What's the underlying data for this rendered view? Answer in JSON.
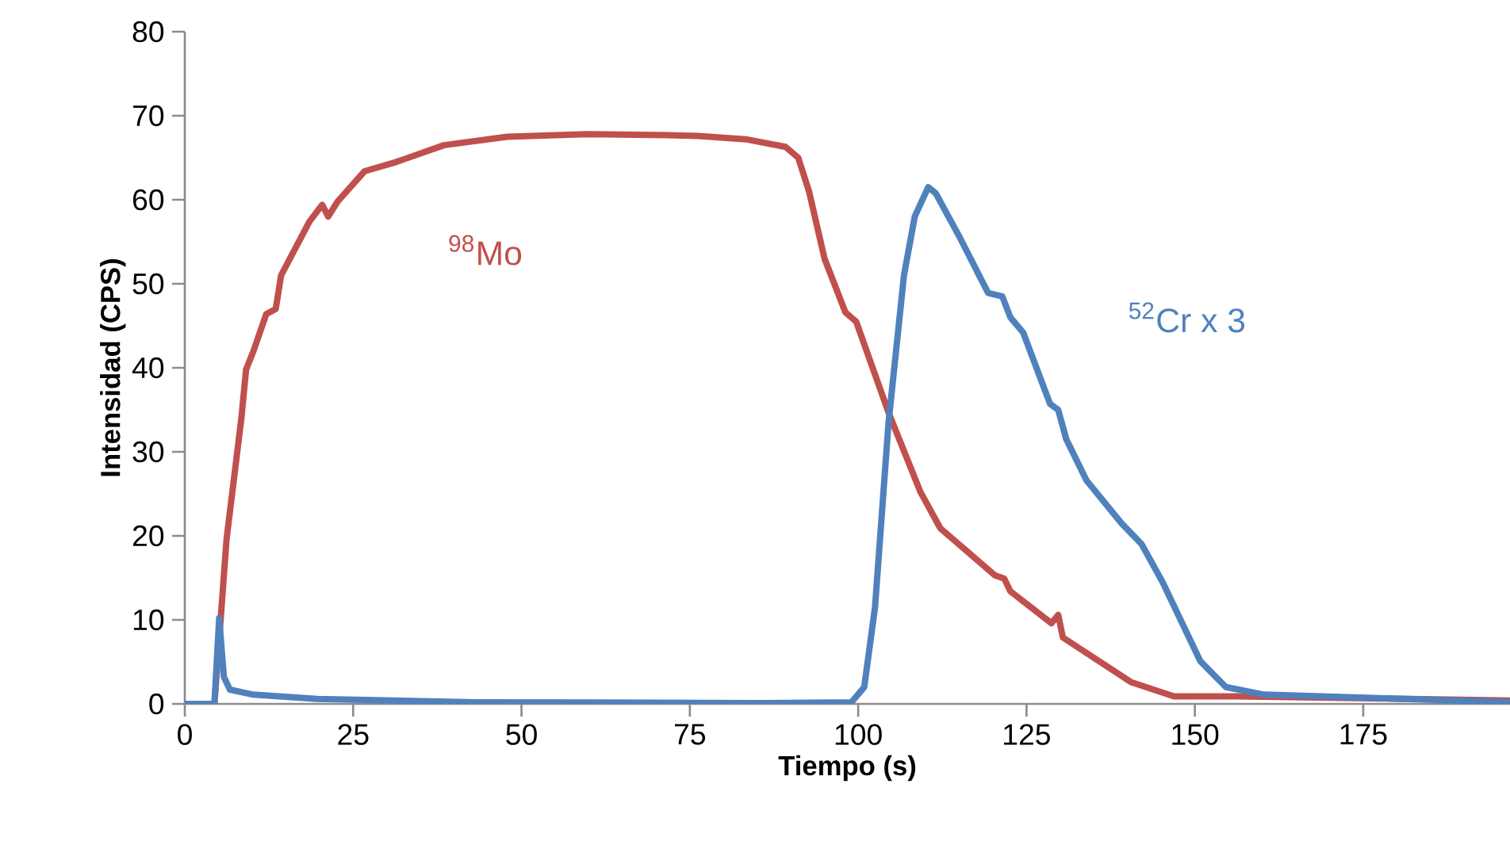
{
  "chart_data": {
    "type": "line",
    "xlabel": "Tiempo (s)",
    "ylabel": "Intensidad (CPS)",
    "xlim": [
      0,
      196.8
    ],
    "xticks": [
      0,
      25,
      50,
      75,
      100,
      125,
      150,
      175
    ],
    "ylim": [
      0,
      80
    ],
    "yticks": [
      0,
      10,
      20,
      30,
      40,
      50,
      60,
      70,
      80
    ],
    "grid": false,
    "legend": false,
    "marker": "none",
    "line_style": "solid",
    "series": [
      {
        "name": "$^{98}$Mo",
        "color": "#c0504d",
        "x": [
          0,
          4.4,
          6.2,
          8.4,
          9.1,
          10.2,
          12.1,
          13.5,
          14.3,
          18.5,
          20.4,
          21.3,
          22.7,
          26.7,
          31.4,
          38.5,
          47.9,
          59.7,
          71.5,
          76.2,
          83.3,
          89.2,
          91.1,
          92.7,
          95.0,
          98.1,
          99.7,
          104.5,
          109.2,
          112.2,
          120.3,
          121.7,
          122.6,
          128.7,
          129.7,
          130.4,
          140.5,
          146.9,
          156.3,
          196.8
        ],
        "values": [
          0,
          0,
          19.6,
          34,
          39.8,
          42,
          46.4,
          47,
          51,
          57.4,
          59.4,
          58,
          59.8,
          63.4,
          64.5,
          66.5,
          67.5,
          67.8,
          67.7,
          67.6,
          67.2,
          66.3,
          65,
          61,
          53,
          46.6,
          45.5,
          34.7,
          25.3,
          20.9,
          15.3,
          14.9,
          13.4,
          9.6,
          10.6,
          7.9,
          2.6,
          0.9,
          0.9,
          0.4
        ]
      },
      {
        "name": "$^{52}$Cr x 3",
        "color": "#4f81bd",
        "x": [
          0,
          4.4,
          5.1,
          5.8,
          6.7,
          10.2,
          19.7,
          43.2,
          85.6,
          99,
          100.9,
          102.5,
          104.5,
          106.8,
          108.4,
          110.4,
          111.5,
          115.1,
          119.3,
          121.4,
          122.6,
          124.5,
          128.5,
          129.7,
          130.9,
          133.9,
          139.1,
          142.1,
          145.2,
          150.8,
          154.6,
          160.3,
          196.8
        ],
        "values": [
          0,
          0,
          10.2,
          3.2,
          1.7,
          1.1,
          0.6,
          0.2,
          0.1,
          0.2,
          2,
          11.5,
          33.4,
          51,
          58,
          61.5,
          60.8,
          55.5,
          48.9,
          48.5,
          46,
          44.2,
          35.7,
          35,
          31.5,
          26.6,
          21.5,
          19,
          14.5,
          5.1,
          2,
          1.1,
          0.2
        ]
      }
    ]
  }
}
